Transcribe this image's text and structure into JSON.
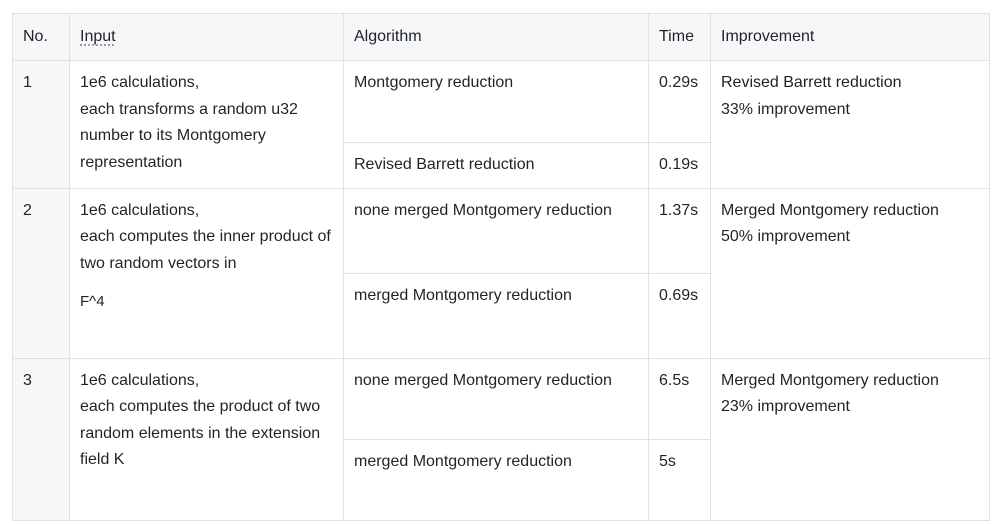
{
  "headers": {
    "no": "No.",
    "input": "Input",
    "algorithm": "Algorithm",
    "time": "Time",
    "improvement": "Improvement"
  },
  "rows": [
    {
      "no": "1",
      "input_lines": [
        "1e6 calculations,",
        "each transforms a random u32 number to its Montgomery representation"
      ],
      "variants": [
        {
          "algorithm": "Montgomery reduction",
          "time": "0.29s"
        },
        {
          "algorithm": "Revised Barrett reduction",
          "time": "0.19s"
        }
      ],
      "improvement_title": "Revised Barrett reduction",
      "improvement_value": "33% improvement"
    },
    {
      "no": "2",
      "input_lines": [
        "1e6 calculations,",
        "each computes the inner product of two random vectors in"
      ],
      "input_math": "F^4",
      "variants": [
        {
          "algorithm": "none merged Montgomery reduction",
          "time": "1.37s"
        },
        {
          "algorithm": "merged Montgomery reduction",
          "time": "0.69s"
        }
      ],
      "improvement_title": "Merged Montgomery reduction",
      "improvement_value": "50% improvement"
    },
    {
      "no": "3",
      "input_lines": [
        "1e6 calculations,",
        "each computes the product of two random elements in the extension field K"
      ],
      "variants": [
        {
          "algorithm": "none merged Montgomery reduction",
          "time": "6.5s"
        },
        {
          "algorithm": "merged Montgomery reduction",
          "time": "5s"
        }
      ],
      "improvement_title": "Merged Montgomery reduction",
      "improvement_value": "23% improvement"
    }
  ]
}
